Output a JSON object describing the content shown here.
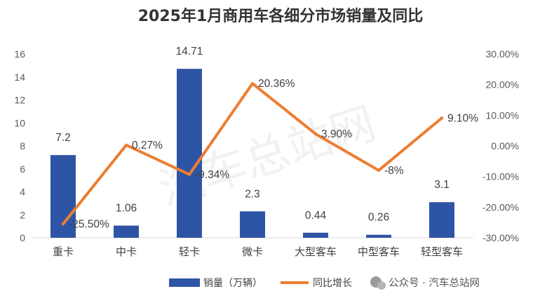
{
  "chart_data": {
    "type": "bar+line",
    "title": "2025年1月商用车各细分市场销量及同比",
    "categories": [
      "重卡",
      "中卡",
      "轻卡",
      "微卡",
      "大型客车",
      "中型客车",
      "轻型客车"
    ],
    "series": [
      {
        "name": "销量（万辆）",
        "type": "bar",
        "axis": "left",
        "color": "#2E55A5",
        "values": [
          7.2,
          1.06,
          14.71,
          2.3,
          0.44,
          0.26,
          3.1
        ],
        "labels": [
          "7.2",
          "1.06",
          "14.71",
          "2.3",
          "0.44",
          "0.26",
          "3.1"
        ]
      },
      {
        "name": "同比增长",
        "type": "line",
        "axis": "right",
        "color": "#ED7D31",
        "values": [
          -25.5,
          0.27,
          -9.34,
          20.36,
          3.9,
          -8,
          9.1
        ],
        "labels": [
          "-25.50%",
          "0.27%",
          "-9.34%",
          "20.36%",
          "3.90%",
          "-8%",
          "9.10%"
        ]
      }
    ],
    "y_left": {
      "min": 0,
      "max": 16,
      "ticks": [
        "0",
        "2",
        "4",
        "6",
        "8",
        "10",
        "12",
        "14",
        "16"
      ]
    },
    "y_right": {
      "min": -30,
      "max": 30,
      "ticks": [
        "-30.00%",
        "-20.00%",
        "-10.00%",
        "0.00%",
        "10.00%",
        "20.00%",
        "30.00%"
      ]
    },
    "grid": false,
    "legend_position": "bottom"
  },
  "watermark": {
    "source": "公众号 · 汽车总站网",
    "background_text": "汽车总站网"
  }
}
